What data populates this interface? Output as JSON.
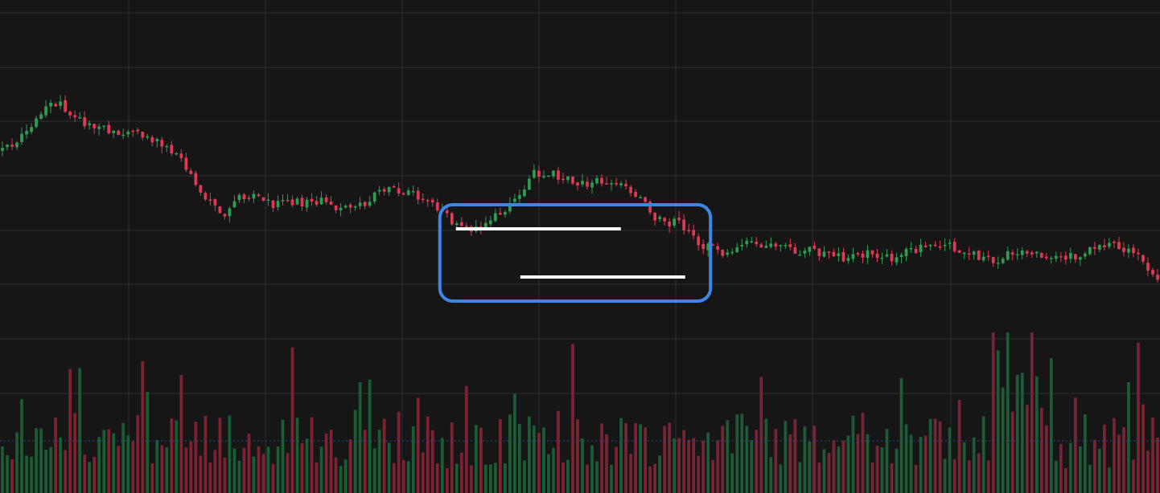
{
  "chart_data": {
    "type": "candlestick",
    "title": "",
    "xlabel": "",
    "ylabel": "",
    "grid": true,
    "price_range": [
      0,
      100
    ],
    "volume_range": [
      0,
      100
    ],
    "candle_count": 240,
    "anchors": [
      [
        0,
        68
      ],
      [
        5,
        72
      ],
      [
        10,
        80
      ],
      [
        15,
        76
      ],
      [
        20,
        73
      ],
      [
        25,
        72
      ],
      [
        30,
        71
      ],
      [
        35,
        68
      ],
      [
        40,
        60
      ],
      [
        45,
        52
      ],
      [
        50,
        57
      ],
      [
        55,
        55
      ],
      [
        60,
        55
      ],
      [
        65,
        56
      ],
      [
        70,
        54
      ],
      [
        75,
        55
      ],
      [
        80,
        59
      ],
      [
        85,
        57
      ],
      [
        90,
        54
      ],
      [
        95,
        49
      ],
      [
        100,
        50
      ],
      [
        105,
        55
      ],
      [
        110,
        62
      ],
      [
        115,
        62
      ],
      [
        120,
        60
      ],
      [
        125,
        61
      ],
      [
        130,
        58
      ],
      [
        135,
        52
      ],
      [
        140,
        50
      ],
      [
        145,
        45
      ],
      [
        150,
        43
      ],
      [
        155,
        46
      ],
      [
        160,
        45
      ],
      [
        165,
        44
      ],
      [
        170,
        43
      ],
      [
        175,
        42
      ],
      [
        180,
        43
      ],
      [
        185,
        42
      ],
      [
        190,
        45
      ],
      [
        195,
        45
      ],
      [
        200,
        43
      ],
      [
        205,
        41
      ],
      [
        210,
        44
      ],
      [
        215,
        42
      ],
      [
        220,
        42
      ],
      [
        225,
        44
      ],
      [
        230,
        45
      ],
      [
        235,
        42
      ],
      [
        239,
        38
      ]
    ],
    "candle_colors": {
      "up": "#2e9d52",
      "down": "#df3a55"
    },
    "volume_colors": {
      "up": "#1c5c34",
      "down": "#7a2433"
    },
    "annotation": {
      "box_color": "#3f87e6",
      "line_color": "#ffffff",
      "candle_range": [
        91,
        147
      ]
    },
    "colors": {
      "background": "#161617",
      "grid": "#2f2f31",
      "baseline": "#2b4a8a"
    }
  }
}
